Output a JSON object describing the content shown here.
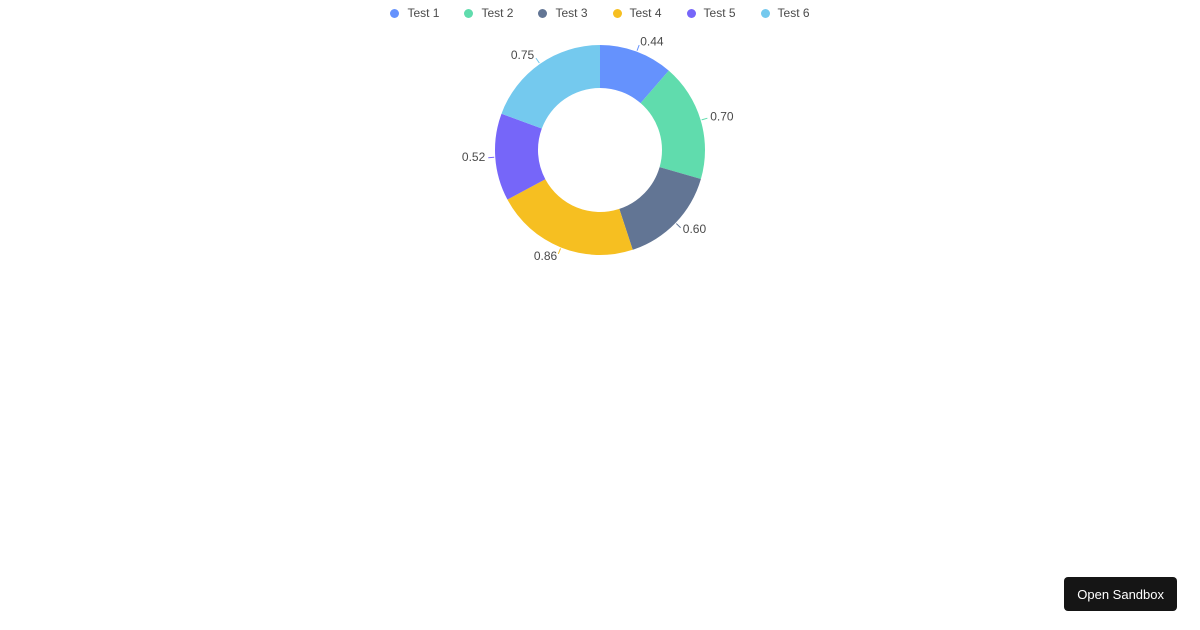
{
  "chart_data": {
    "type": "pie",
    "variant": "donut",
    "categories": [
      "Test 1",
      "Test 2",
      "Test 3",
      "Test 4",
      "Test 5",
      "Test 6"
    ],
    "values": [
      0.44,
      0.7,
      0.6,
      0.86,
      0.52,
      0.75
    ],
    "value_labels": [
      "0.44",
      "0.70",
      "0.60",
      "0.86",
      "0.52",
      "0.75"
    ],
    "colors": [
      "#6592fd",
      "#60dcad",
      "#627594",
      "#f6bf21",
      "#7666f9",
      "#74c9ee"
    ],
    "legend_position": "top"
  },
  "footer": {
    "sandbox_label": "Open Sandbox"
  }
}
